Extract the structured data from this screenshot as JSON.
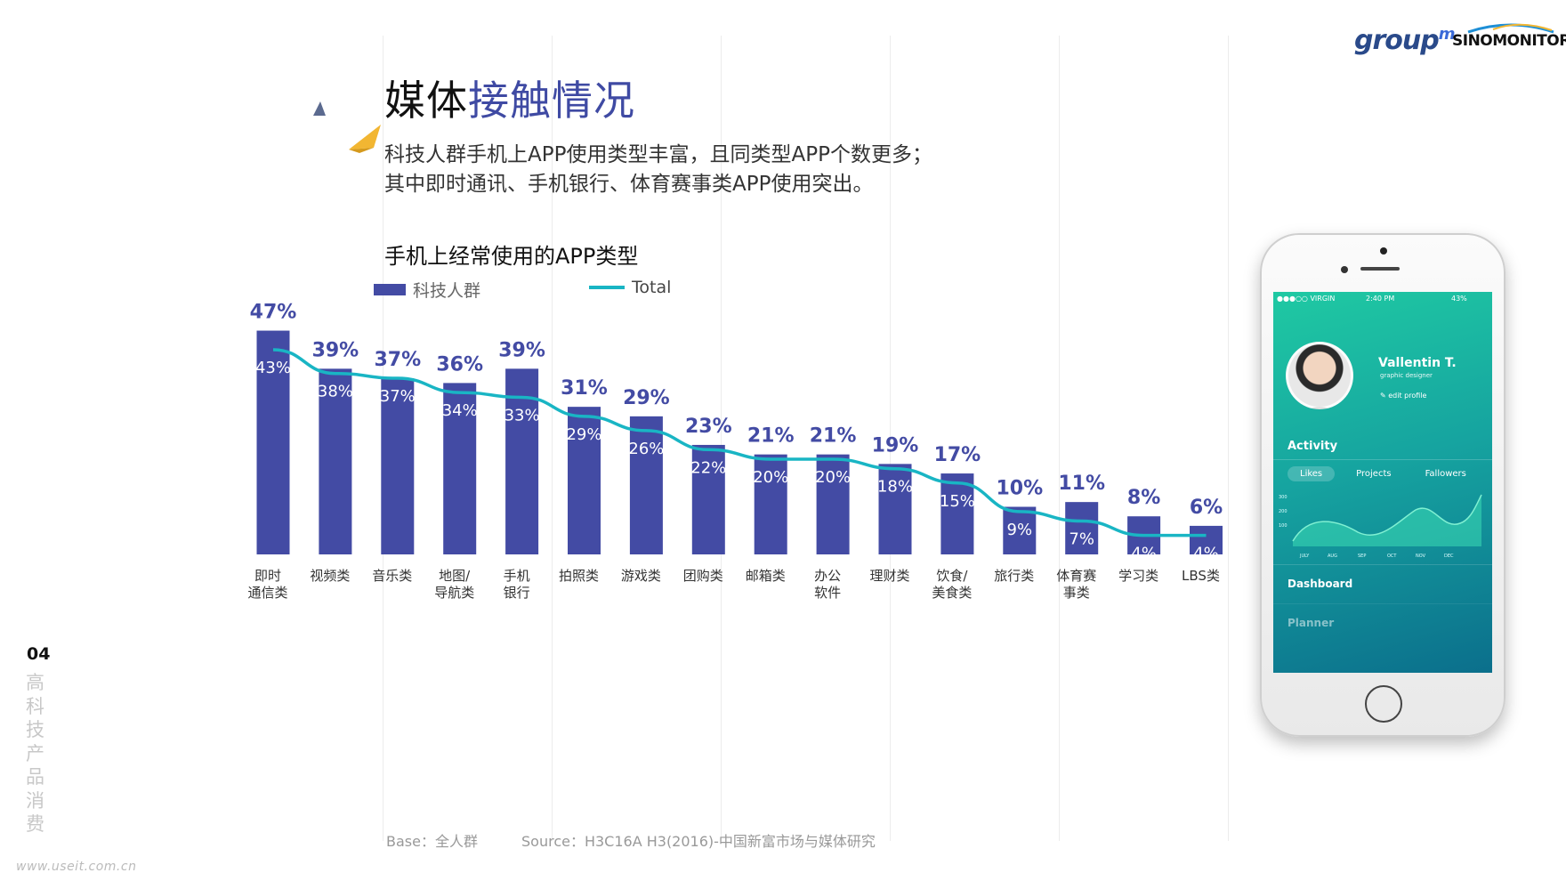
{
  "header": {
    "title_part1": "媒体",
    "title_part2": "接触情况",
    "subtitle_line1": "科技人群手机上APP使用类型丰富，且同类型APP个数更多；",
    "subtitle_line2": "其中即时通讯、手机银行、体育赛事类APP使用突出。"
  },
  "logos": {
    "group": "group",
    "group_sup": "m",
    "sino": "SINOMONITOR"
  },
  "side": {
    "page_number": "04",
    "section": "高科技产品消费"
  },
  "footer": {
    "base": "Base：全人群",
    "source": "Source：H3C16A H3(2016)-中国新富市场与媒体研究",
    "watermark": "www.useit.com.cn"
  },
  "colors": {
    "bar": "#434ba4",
    "line": "#19b5c4",
    "accent_yellow": "#f2b632",
    "title_blue": "#3f4aa3"
  },
  "chart_data": {
    "type": "bar",
    "title": "手机上经常使用的APP类型",
    "categories": [
      [
        "即时",
        "通信类"
      ],
      [
        "视频类"
      ],
      [
        "音乐类"
      ],
      [
        "地图/",
        "导航类"
      ],
      [
        "手机",
        "银行"
      ],
      [
        "拍照类"
      ],
      [
        "游戏类"
      ],
      [
        "团购类"
      ],
      [
        "邮箱类"
      ],
      [
        "办公",
        "软件"
      ],
      [
        "理财类"
      ],
      [
        "饮食/",
        "美食类"
      ],
      [
        "旅行类"
      ],
      [
        "体育赛",
        "事类"
      ],
      [
        "学习类"
      ],
      [
        "LBS类"
      ]
    ],
    "series": [
      {
        "name": "科技人群",
        "type": "bar",
        "values": [
          47,
          39,
          37,
          36,
          39,
          31,
          29,
          23,
          21,
          21,
          19,
          17,
          10,
          11,
          8,
          6
        ]
      },
      {
        "name": "Total",
        "type": "line",
        "values": [
          43,
          38,
          37,
          34,
          33,
          29,
          26,
          22,
          20,
          20,
          18,
          15,
          9,
          7,
          4,
          4
        ]
      }
    ],
    "unit": "%",
    "ylim": [
      0,
      50
    ],
    "legend": "top",
    "grid": false
  },
  "phone": {
    "status_left": "●●●○○ VIRGIN",
    "status_time": "2:40 PM",
    "status_right": "43%",
    "name": "Vallentin T.",
    "role": "graphic designer",
    "edit": "edit profile",
    "activity": "Activity",
    "tabs": [
      "Likes",
      "Projects",
      "Fallowers"
    ],
    "y_ticks": [
      "300",
      "200",
      "100"
    ],
    "months": [
      "JULY",
      "AUG",
      "SEP",
      "OCT",
      "NOV",
      "DEC"
    ],
    "menu": [
      "Dashboard",
      "Planner"
    ]
  }
}
